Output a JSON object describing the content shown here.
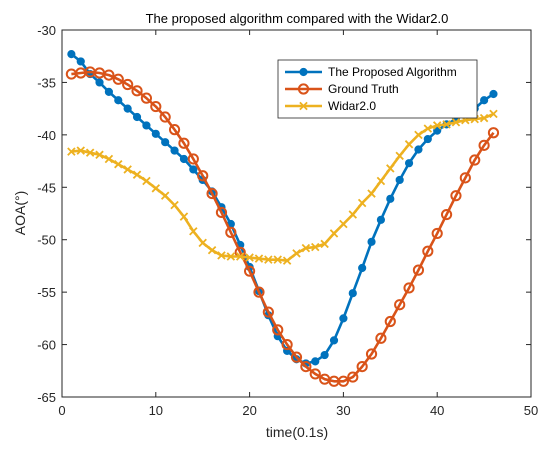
{
  "chart_data": {
    "type": "line",
    "title": "The proposed algorithm compared with the Widar2.0",
    "xlabel": "time(0.1s)",
    "ylabel": "AOA(°)",
    "xlim": [
      0,
      50
    ],
    "ylim": [
      -65,
      -30
    ],
    "xticks": [
      0,
      10,
      20,
      30,
      40,
      50
    ],
    "yticks": [
      -30,
      -35,
      -40,
      -45,
      -50,
      -55,
      -60,
      -65
    ],
    "legend_position": "top-right",
    "grid": false,
    "series": [
      {
        "name": "The Proposed Algorithm",
        "color": "#0072BD",
        "marker": "dot",
        "x": [
          1,
          2,
          3,
          4,
          5,
          6,
          7,
          8,
          9,
          10,
          11,
          12,
          13,
          14,
          15,
          16,
          17,
          18,
          19,
          20,
          21,
          22,
          23,
          24,
          25,
          26,
          27,
          28,
          29,
          30,
          31,
          32,
          33,
          34,
          35,
          36,
          37,
          38,
          39,
          40,
          41,
          42,
          43,
          44,
          45,
          46
        ],
        "values": [
          -32.3,
          -33.0,
          -34.2,
          -35.0,
          -35.9,
          -36.7,
          -37.5,
          -38.3,
          -39.1,
          -39.9,
          -40.7,
          -41.5,
          -42.3,
          -43.3,
          -44.3,
          -45.4,
          -46.9,
          -48.5,
          -50.5,
          -52.6,
          -54.9,
          -57.2,
          -59.2,
          -60.6,
          -61.4,
          -61.8,
          -61.6,
          -61.0,
          -59.6,
          -57.5,
          -55.1,
          -52.7,
          -50.2,
          -48.1,
          -46.1,
          -44.3,
          -42.7,
          -41.4,
          -40.4,
          -39.6,
          -39.0,
          -38.5,
          -38.0,
          -37.5,
          -36.7,
          -36.1
        ]
      },
      {
        "name": "Ground Truth",
        "color": "#D95319",
        "marker": "circle",
        "x": [
          1,
          2,
          3,
          4,
          5,
          6,
          7,
          8,
          9,
          10,
          11,
          12,
          13,
          14,
          15,
          16,
          17,
          18,
          19,
          20,
          21,
          22,
          23,
          24,
          25,
          26,
          27,
          28,
          29,
          30,
          31,
          32,
          33,
          34,
          35,
          36,
          37,
          38,
          39,
          40,
          41,
          42,
          43,
          44,
          45,
          46
        ],
        "values": [
          -34.2,
          -34.1,
          -34.0,
          -34.1,
          -34.3,
          -34.7,
          -35.2,
          -35.8,
          -36.5,
          -37.3,
          -38.3,
          -39.5,
          -40.8,
          -42.3,
          -43.9,
          -45.6,
          -47.4,
          -49.3,
          -51.2,
          -53.0,
          -55.0,
          -56.9,
          -58.6,
          -60.0,
          -61.2,
          -62.1,
          -62.8,
          -63.3,
          -63.5,
          -63.5,
          -63.1,
          -62.1,
          -60.9,
          -59.4,
          -57.8,
          -56.2,
          -54.6,
          -52.9,
          -51.1,
          -49.4,
          -47.6,
          -45.8,
          -44.1,
          -42.4,
          -41.0,
          -39.8
        ]
      },
      {
        "name": "Widar2.0",
        "color": "#EDB120",
        "marker": "cross",
        "x": [
          1,
          2,
          3,
          4,
          5,
          6,
          7,
          8,
          9,
          10,
          11,
          12,
          13,
          14,
          15,
          16,
          17,
          18,
          19,
          20,
          21,
          22,
          23,
          24,
          25,
          26,
          27,
          28,
          29,
          30,
          31,
          32,
          33,
          34,
          35,
          36,
          37,
          38,
          39,
          40,
          41,
          42,
          43,
          44,
          45,
          46
        ],
        "values": [
          -41.6,
          -41.5,
          -41.7,
          -41.9,
          -42.3,
          -42.8,
          -43.3,
          -43.8,
          -44.4,
          -45.1,
          -45.8,
          -46.7,
          -47.8,
          -49.2,
          -50.3,
          -51.0,
          -51.5,
          -51.6,
          -51.6,
          -51.7,
          -51.8,
          -51.9,
          -51.9,
          -52.0,
          -51.3,
          -50.8,
          -50.7,
          -50.4,
          -49.4,
          -48.5,
          -47.6,
          -46.5,
          -45.6,
          -44.4,
          -43.2,
          -42.0,
          -40.9,
          -40.0,
          -39.4,
          -39.1,
          -39.0,
          -38.8,
          -38.6,
          -38.5,
          -38.4,
          -38.0
        ]
      }
    ]
  }
}
